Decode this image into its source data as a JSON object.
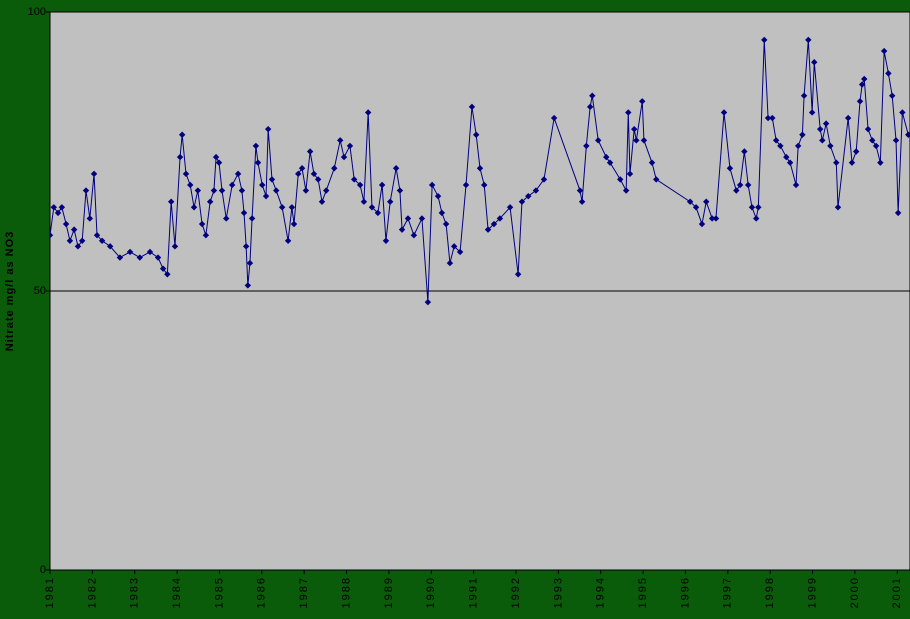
{
  "chart_data": {
    "type": "line",
    "ylabel": "Nitrate mg/l as NO3",
    "xlim": [
      1981,
      2001.3
    ],
    "xticks": [
      1981,
      1982,
      1983,
      1984,
      1985,
      1986,
      1987,
      1988,
      1989,
      1990,
      1991,
      1992,
      1993,
      1994,
      1995,
      1996,
      1997,
      1998,
      1999,
      2000,
      2001
    ],
    "ylim": [
      0,
      100
    ],
    "yticks": [
      0,
      50,
      100
    ],
    "grid": true,
    "x": [
      1981.0,
      1981.09,
      1981.19,
      1981.28,
      1981.38,
      1981.47,
      1981.57,
      1981.66,
      1981.76,
      1981.85,
      1981.94,
      1982.04,
      1982.11,
      1982.23,
      1982.42,
      1982.65,
      1982.89,
      1983.12,
      1983.36,
      1983.55,
      1983.67,
      1983.77,
      1983.86,
      1983.95,
      1984.07,
      1984.12,
      1984.21,
      1984.31,
      1984.4,
      1984.49,
      1984.59,
      1984.68,
      1984.78,
      1984.87,
      1984.92,
      1984.99,
      1985.06,
      1985.16,
      1985.3,
      1985.44,
      1985.53,
      1985.58,
      1985.63,
      1985.67,
      1985.72,
      1985.77,
      1985.86,
      1985.91,
      1986.01,
      1986.1,
      1986.15,
      1986.24,
      1986.34,
      1986.48,
      1986.62,
      1986.71,
      1986.76,
      1986.86,
      1986.95,
      1987.04,
      1987.14,
      1987.23,
      1987.33,
      1987.42,
      1987.52,
      1987.71,
      1987.85,
      1987.94,
      1988.08,
      1988.18,
      1988.32,
      1988.41,
      1988.51,
      1988.6,
      1988.74,
      1988.84,
      1988.93,
      1989.03,
      1989.17,
      1989.26,
      1989.31,
      1989.45,
      1989.59,
      1989.78,
      1989.92,
      1990.02,
      1990.16,
      1990.25,
      1990.35,
      1990.44,
      1990.54,
      1990.68,
      1990.82,
      1990.96,
      1991.06,
      1991.15,
      1991.25,
      1991.34,
      1991.48,
      1991.62,
      1991.86,
      1992.05,
      1992.14,
      1992.29,
      1992.47,
      1992.66,
      1992.9,
      1993.51,
      1993.56,
      1993.66,
      1993.75,
      1993.8,
      1993.94,
      1994.13,
      1994.22,
      1994.46,
      1994.6,
      1994.65,
      1994.69,
      1994.79,
      1994.84,
      1994.98,
      1995.02,
      1995.21,
      1995.31,
      1996.11,
      1996.25,
      1996.39,
      1996.49,
      1996.63,
      1996.72,
      1996.91,
      1997.05,
      1997.2,
      1997.29,
      1997.39,
      1997.48,
      1997.57,
      1997.67,
      1997.72,
      1997.86,
      1997.95,
      1998.05,
      1998.14,
      1998.24,
      1998.38,
      1998.47,
      1998.61,
      1998.66,
      1998.76,
      1998.8,
      1998.9,
      1998.99,
      1999.04,
      1999.18,
      1999.23,
      1999.32,
      1999.42,
      1999.56,
      1999.6,
      1999.84,
      1999.93,
      2000.03,
      2000.12,
      2000.17,
      2000.22,
      2000.31,
      2000.41,
      2000.5,
      2000.6,
      2000.69,
      2000.79,
      2000.88,
      2000.97,
      2001.02,
      2001.12,
      2001.26
    ],
    "series": [
      {
        "color": "#000080",
        "values": [
          60,
          65,
          64,
          65,
          62,
          59,
          61,
          58,
          59,
          68,
          63,
          71,
          60,
          59,
          58,
          56,
          57,
          56,
          57,
          56,
          54,
          53,
          66,
          58,
          74,
          78,
          71,
          69,
          65,
          68,
          62,
          60,
          66,
          68,
          74,
          73,
          68,
          63,
          69,
          71,
          68,
          64,
          58,
          51,
          55,
          63,
          76,
          73,
          69,
          67,
          79,
          70,
          68,
          65,
          59,
          65,
          62,
          71,
          72,
          68,
          75,
          71,
          70,
          66,
          68,
          72,
          77,
          74,
          76,
          70,
          69,
          66,
          82,
          65,
          64,
          69,
          59,
          66,
          72,
          68,
          61,
          63,
          60,
          63,
          48,
          69,
          67,
          64,
          62,
          55,
          58,
          57,
          69,
          83,
          78,
          72,
          69,
          61,
          62,
          63,
          65,
          53,
          66,
          67,
          68,
          70,
          81,
          68,
          66,
          76,
          83,
          85,
          77,
          74,
          73,
          70,
          68,
          82,
          71,
          79,
          77,
          84,
          77,
          73,
          70,
          66,
          65,
          62,
          66,
          63,
          63,
          82,
          72,
          68,
          69,
          75,
          69,
          65,
          63,
          65,
          95,
          81,
          81,
          77,
          76,
          74,
          73,
          69,
          76,
          78,
          85,
          95,
          82,
          91,
          79,
          77,
          80,
          76,
          73,
          65,
          81,
          73,
          75,
          84,
          87,
          88,
          79,
          77,
          76,
          73,
          93,
          89,
          85,
          77,
          64,
          82,
          78
        ]
      }
    ]
  }
}
